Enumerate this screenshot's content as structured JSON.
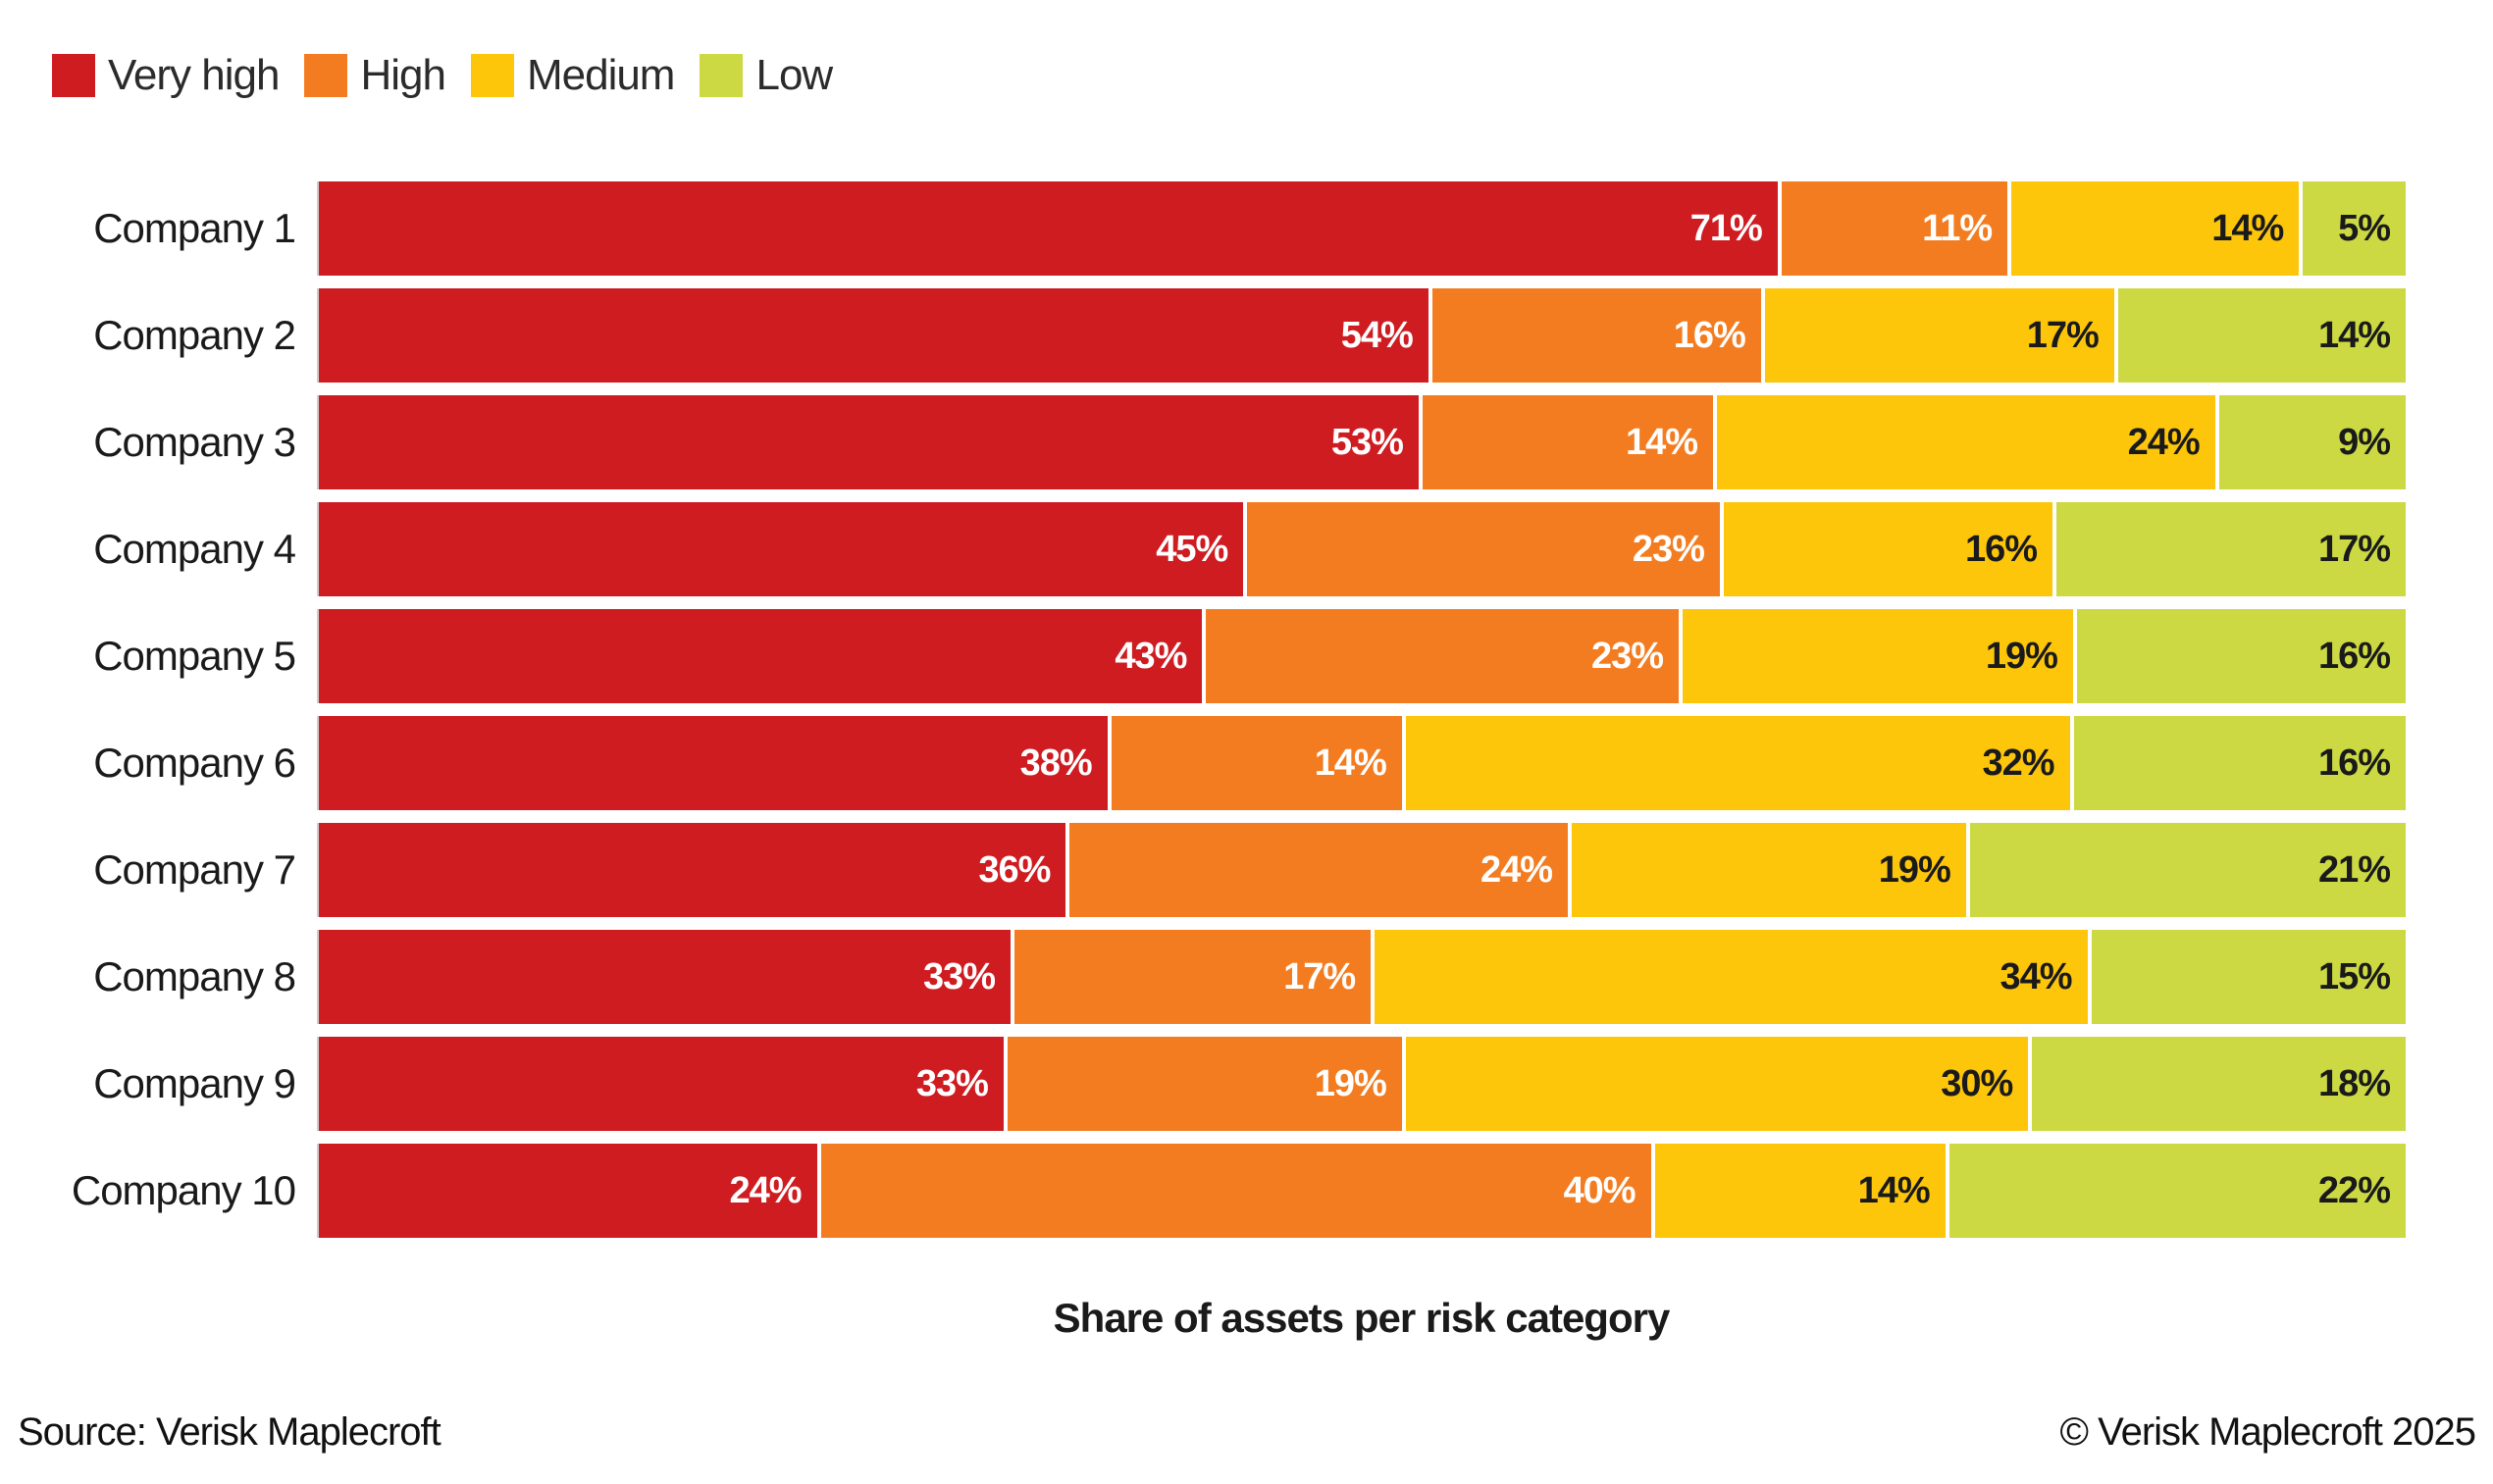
{
  "legend": {
    "items": [
      {
        "label": "Very high",
        "color": "#ce1c21"
      },
      {
        "label": "High",
        "color": "#f47c20"
      },
      {
        "label": "Medium",
        "color": "#fdc60b"
      },
      {
        "label": "Low",
        "color": "#ccd943"
      }
    ]
  },
  "chart_data": {
    "type": "bar",
    "stacked": true,
    "orientation": "horizontal",
    "value_suffix": "%",
    "xlabel": "Share of assets per risk category",
    "xlim": [
      0,
      100
    ],
    "grid": false,
    "legend_position": "top-left",
    "categories": [
      "Company 1",
      "Company 2",
      "Company 3",
      "Company 4",
      "Company 5",
      "Company 6",
      "Company 7",
      "Company 8",
      "Company 9",
      "Company 10"
    ],
    "series": [
      {
        "name": "Very high",
        "color": "#ce1c21",
        "label_color": "#ffffff",
        "values": [
          71,
          54,
          53,
          45,
          43,
          38,
          36,
          33,
          33,
          24
        ]
      },
      {
        "name": "High",
        "color": "#f47c20",
        "label_color": "#ffffff",
        "values": [
          11,
          16,
          14,
          23,
          23,
          14,
          24,
          17,
          19,
          40
        ]
      },
      {
        "name": "Medium",
        "color": "#fdc60b",
        "label_color": "#1a1a1a",
        "values": [
          14,
          17,
          24,
          16,
          19,
          32,
          19,
          34,
          30,
          14
        ]
      },
      {
        "name": "Low",
        "color": "#ccd943",
        "label_color": "#1a1a1a",
        "values": [
          5,
          14,
          9,
          17,
          16,
          16,
          21,
          15,
          18,
          22
        ]
      }
    ]
  },
  "footer": {
    "source": "Source: Verisk Maplecroft",
    "copyright": "© Verisk Maplecroft 2025"
  }
}
